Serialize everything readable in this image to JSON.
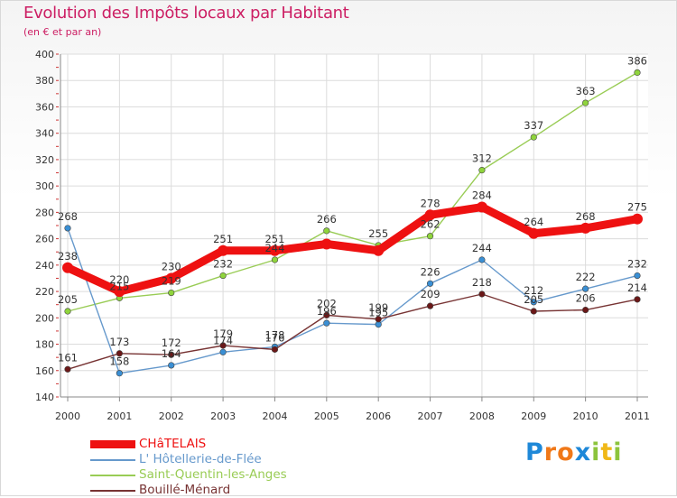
{
  "chart_data": {
    "type": "line",
    "title": "Evolution des Impôts locaux par Habitant",
    "subtitle": "(en € et par an)",
    "xlabel": "",
    "ylabel": "",
    "ylim": [
      140,
      400
    ],
    "yticks": [
      140,
      160,
      180,
      200,
      220,
      240,
      260,
      280,
      300,
      320,
      340,
      360,
      380,
      400
    ],
    "x": [
      "2000",
      "2001",
      "2002",
      "2003",
      "2004",
      "2005",
      "2006",
      "2007",
      "2008",
      "2009",
      "2010",
      "2011"
    ],
    "grid": true,
    "legend_position": "bottom-left",
    "series": [
      {
        "name": "Saint-Quentin-les-Anges",
        "color": "#99cc55",
        "marker": "#8fd43c",
        "values": [
          205,
          215,
          219,
          232,
          244,
          266,
          255,
          262,
          312,
          337,
          363,
          386
        ],
        "labels": [
          "205",
          "215",
          "219",
          "232",
          "244",
          "266",
          "255",
          "262",
          "312",
          "337",
          "363",
          "386"
        ]
      },
      {
        "name": "L' Hôtellerie-de-Flée",
        "color": "#6699cc",
        "marker": "#3a8fd4",
        "values": [
          268,
          158,
          164,
          174,
          178,
          196,
          195,
          226,
          244,
          212,
          222,
          232
        ],
        "labels": [
          "268",
          "158",
          "164",
          "174",
          "178",
          "196",
          "195",
          "226",
          "244",
          "212",
          "222",
          "232"
        ]
      },
      {
        "name": "Bouillé-Ménard",
        "color": "#773333",
        "marker": "#6b1818",
        "values": [
          161,
          173,
          172,
          179,
          176,
          202,
          199,
          209,
          218,
          205,
          206,
          214
        ],
        "labels": [
          "161",
          "173",
          "172",
          "179",
          "176",
          "202",
          "199",
          "209",
          "218",
          "205",
          "206",
          "214"
        ]
      },
      {
        "name": "CHâTELAIS",
        "color": "#ee1111",
        "marker": "#ee1111",
        "values": [
          238,
          220,
          230,
          251,
          251,
          256,
          251,
          278,
          284,
          264,
          268,
          275
        ],
        "labels": [
          "238",
          "220",
          "230",
          "251",
          "251",
          "",
          "",
          "278",
          "284",
          "264",
          "268",
          "275"
        ]
      }
    ]
  },
  "legend": [
    {
      "label": "CHâTELAIS",
      "color": "#ee1111"
    },
    {
      "label": "L' Hôtellerie-de-Flée",
      "color": "#6699cc"
    },
    {
      "label": "Saint-Quentin-les-Anges",
      "color": "#99cc55"
    },
    {
      "label": "Bouillé-Ménard",
      "color": "#773333"
    }
  ],
  "logo": {
    "letters": [
      "P",
      "r",
      "o",
      "x",
      "i",
      "t",
      "i"
    ],
    "colors": [
      "#1e88d8",
      "#f07818",
      "#f07818",
      "#1e88d8",
      "#8cc43c",
      "#f0b818",
      "#8cc43c"
    ]
  }
}
